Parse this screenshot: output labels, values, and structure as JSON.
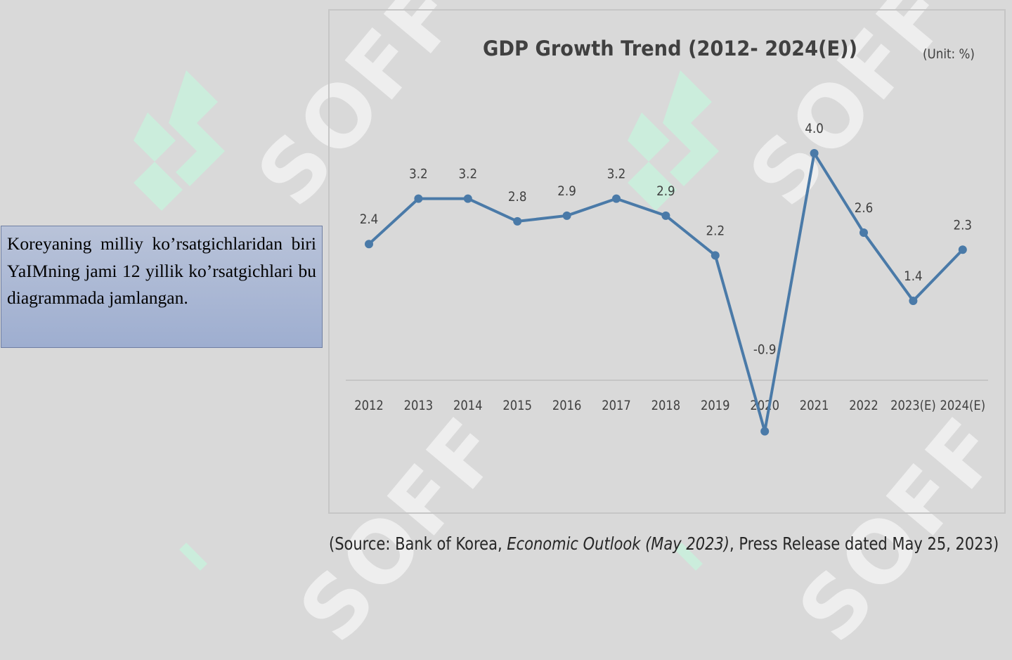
{
  "text_box": {
    "body": "Koreyaning milliy ko’rsatgichlaridan biri YaIMning jami 12 yillik ko’rsatgichlari bu diagrammada jamlangan."
  },
  "watermark": {
    "text": "SOFF",
    "color": "#c8f0dc"
  },
  "source": {
    "prefix": "(Source: Bank of Korea, ",
    "publication": "Economic Outlook (May 2023)",
    "suffix": ", Press Release dated May 25, 2023)"
  },
  "chart_data": {
    "type": "line",
    "title": "GDP Growth Trend (2012- 2024(E))",
    "unit": "(Unit: %)",
    "categories": [
      "2012",
      "2013",
      "2014",
      "2015",
      "2016",
      "2017",
      "2018",
      "2019",
      "2020",
      "2021",
      "2022",
      "2023(E)",
      "2024(E)"
    ],
    "series": [
      {
        "values": [
          2.4,
          3.2,
          3.2,
          2.8,
          2.9,
          3.2,
          2.9,
          2.2,
          -0.9,
          4.0,
          2.6,
          1.4,
          2.3
        ],
        "color": "#4a7aa8"
      }
    ],
    "ylim": [
      -1.0,
      4.5
    ],
    "grid": false,
    "legend": "none"
  }
}
